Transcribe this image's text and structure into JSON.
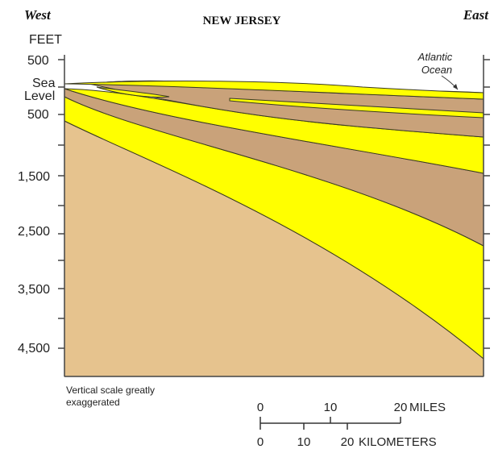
{
  "header": {
    "west": "West",
    "title": "NEW JERSEY",
    "east": "East"
  },
  "axis": {
    "unit": "FEET",
    "labels": [
      "500",
      "Sea",
      "Level",
      "500",
      "1,500",
      "2,500",
      "3,500",
      "4,500"
    ]
  },
  "ocean_label": [
    "Atlantic",
    "Ocean"
  ],
  "note": [
    "Vertical scale greatly",
    "exaggerated"
  ],
  "scale_bar": {
    "miles_ticks": [
      "0",
      "10",
      "20"
    ],
    "miles_unit": "MILES",
    "km_ticks": [
      "0",
      "10",
      "20"
    ],
    "km_unit": "KILOMETERS"
  },
  "colors": {
    "basement": "#e6c38e",
    "aquifer": "#ffff00",
    "confining": "#c9a27a",
    "ocean_layer": "#d4e000",
    "line": "#3a3a22"
  }
}
